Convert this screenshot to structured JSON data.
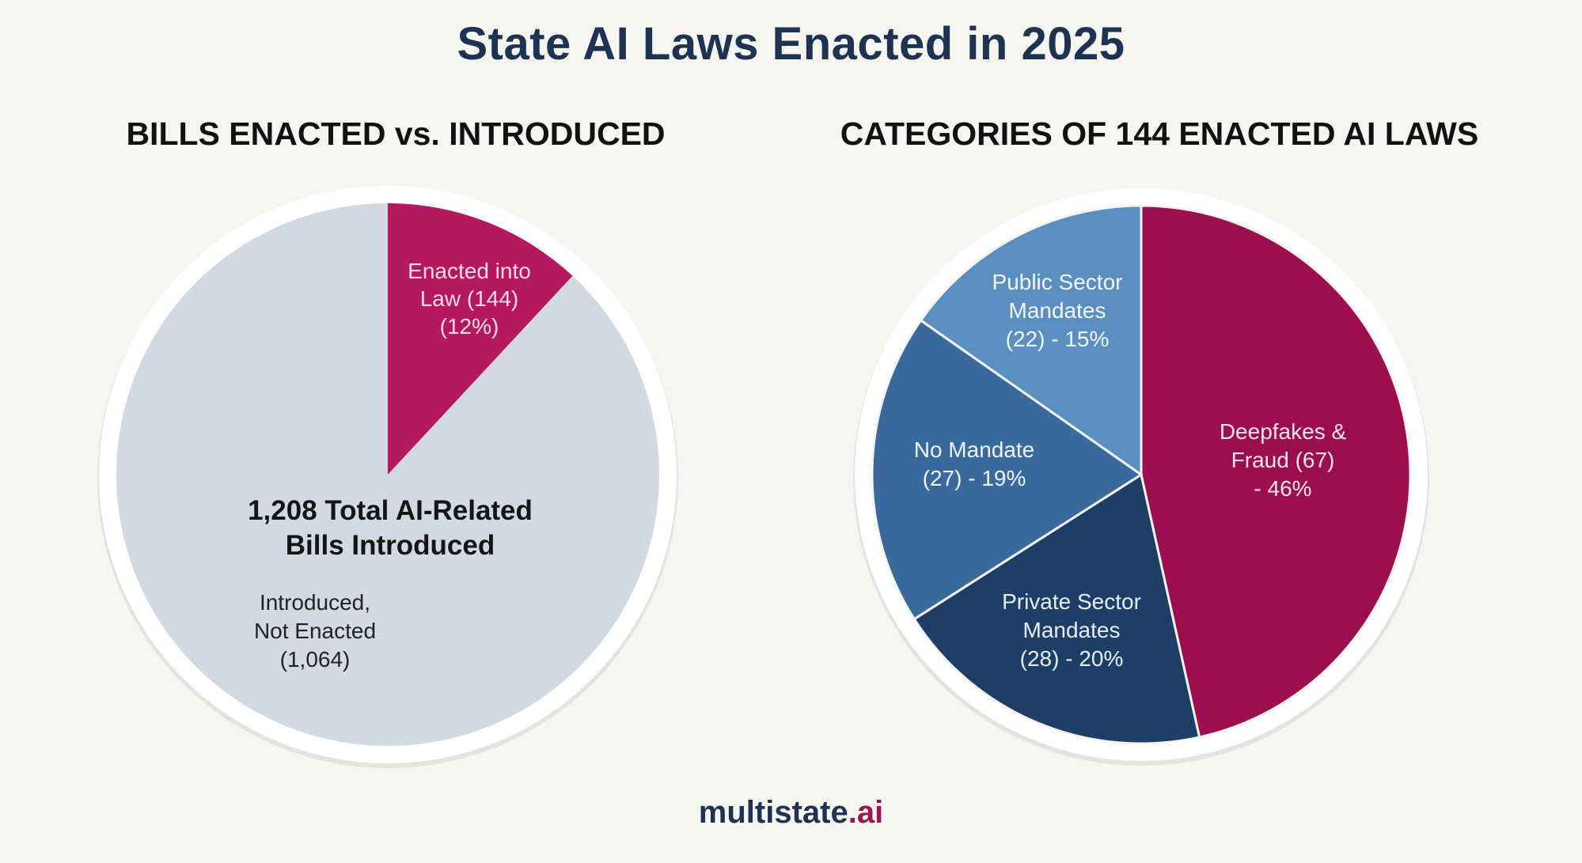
{
  "title": "State AI Laws Enacted in 2025",
  "brand": {
    "name": "multistate",
    "suffix": ".ai"
  },
  "colors": {
    "background": "#f6f6f1",
    "title": "#1e3252",
    "magenta": "#b5185e",
    "deep_magenta": "#9b0f4e",
    "light_grey": "#d1d9e2",
    "blue_light": "#5b8fc0",
    "blue_mid": "#3a6a9c",
    "blue_dark": "#1d3e66"
  },
  "chart_data": [
    {
      "type": "pie",
      "title": "BILLS ENACTED vs. INTRODUCED",
      "center_label": "1,208 Total AI-Related Bills Introduced",
      "center_label_lines": [
        "1,208 Total AI-Related",
        "Bills Introduced"
      ],
      "total": 1208,
      "slices": [
        {
          "name": "Enacted into Law",
          "value": 144,
          "percent": 12,
          "color": "#b5185e",
          "text_color": "#f3dce6",
          "label_lines": [
            "Enacted into",
            "Law (144)",
            "(12%)"
          ]
        },
        {
          "name": "Introduced, Not Enacted",
          "value": 1064,
          "percent": 88,
          "color": "#d1d9e2",
          "text_color": "#222222",
          "label_lines": [
            "Introduced,",
            "Not Enacted",
            "(1,064)"
          ]
        }
      ]
    },
    {
      "type": "pie",
      "title": "CATEGORIES OF 144 ENACTED AI LAWS",
      "total": 144,
      "slices": [
        {
          "name": "Deepfakes & Fraud",
          "value": 67,
          "percent": 46,
          "color": "#9b0f4e",
          "text_color": "#f4e3ea",
          "label_lines": [
            "Deepfakes &",
            "Fraud (67)",
            "- 46%"
          ]
        },
        {
          "name": "Private Sector Mandates",
          "value": 28,
          "percent": 20,
          "color": "#1d3e66",
          "text_color": "#e6edf5",
          "label_lines": [
            "Private Sector",
            "Mandates",
            "(28) - 20%"
          ]
        },
        {
          "name": "No Mandate",
          "value": 27,
          "percent": 19,
          "color": "#3a6a9c",
          "text_color": "#eef3f8",
          "label_lines": [
            "No Mandate",
            "(27) - 19%"
          ]
        },
        {
          "name": "Public Sector Mandates",
          "value": 22,
          "percent": 15,
          "color": "#5b8fc0",
          "text_color": "#f3f7fb",
          "label_lines": [
            "Public Sector",
            "Mandates",
            "(22) - 15%"
          ]
        }
      ]
    }
  ]
}
